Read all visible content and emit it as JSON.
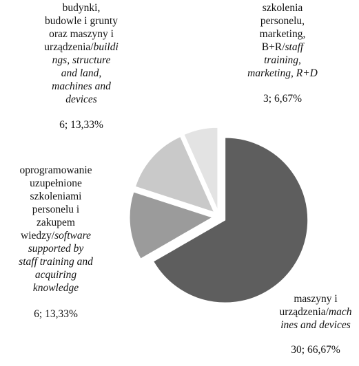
{
  "chart_data": {
    "type": "pie",
    "slices": [
      {
        "label_pl": "maszyny i urządzenia/",
        "label_en": "machines and devices",
        "lines": [
          {
            "t": "maszyny i",
            "i": false
          },
          {
            "t": "urządzenia/",
            "i": false,
            "tail": "mach",
            "ti": true
          },
          {
            "t": "ines and devices",
            "i": true
          }
        ],
        "value": 30,
        "percent": "66,67%",
        "value_label": "30; 66,67%",
        "color": "#5e5e5e"
      },
      {
        "label_pl": "oprogramowanie uzupełnione szkoleniami personelu i zakupem wiedzy/",
        "label_en": "software supported by staff training and acquiring knowledge",
        "lines": [
          {
            "t": "oprogramowanie",
            "i": false
          },
          {
            "t": "uzupełnione",
            "i": false
          },
          {
            "t": "szkoleniami",
            "i": false
          },
          {
            "t": "personelu i",
            "i": false
          },
          {
            "t": "zakupem",
            "i": false
          },
          {
            "t": "wiedzy/",
            "i": false,
            "tail": "software",
            "ti": true
          },
          {
            "t": "supported by",
            "i": true
          },
          {
            "t": "staff training and",
            "i": true
          },
          {
            "t": "acquiring",
            "i": true
          },
          {
            "t": "knowledge",
            "i": true
          }
        ],
        "value": 6,
        "percent": "13,33%",
        "value_label": "6; 13,33%",
        "color": "#9b9b9b"
      },
      {
        "label_pl": "budynki, budowle i grunty oraz maszyny i urządzenia/",
        "label_en": "buildings, structure and land, machines and devices",
        "lines": [
          {
            "t": "budynki,",
            "i": false
          },
          {
            "t": "budowle i grunty",
            "i": false
          },
          {
            "t": "oraz maszyny i",
            "i": false
          },
          {
            "t": "urządzenia/",
            "i": false,
            "tail": "buildi",
            "ti": true
          },
          {
            "t": "ngs, structure",
            "i": true
          },
          {
            "t": "and land,",
            "i": true
          },
          {
            "t": "machines and",
            "i": true
          },
          {
            "t": "devices",
            "i": true
          }
        ],
        "value": 6,
        "percent": "13,33%",
        "value_label": "6; 13,33%",
        "color": "#c9c9c9"
      },
      {
        "label_pl": "szkolenia personelu, marketing, B+R/",
        "label_en": "staff training, marketing, R+D",
        "lines": [
          {
            "t": "szkolenia",
            "i": false
          },
          {
            "t": "personelu,",
            "i": false
          },
          {
            "t": "marketing,",
            "i": false
          },
          {
            "t": "B+R/",
            "i": false,
            "tail": "staff",
            "ti": true
          },
          {
            "t": "training,",
            "i": true
          },
          {
            "t": "marketing, R+D",
            "i": true
          }
        ],
        "value": 3,
        "percent": "6,67%",
        "value_label": "3; 6,67%",
        "color": "#e3e3e3"
      }
    ]
  }
}
